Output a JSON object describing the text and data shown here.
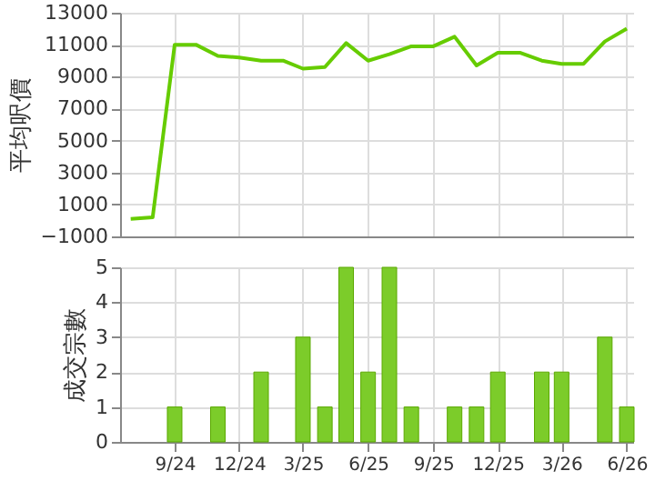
{
  "chart_data": [
    {
      "type": "line",
      "ylabel": "平均呎價",
      "x": [
        "2024-07",
        "2024-08",
        "2024-09",
        "2024-10",
        "2024-11",
        "2024-12",
        "2025-01",
        "2025-02",
        "2025-03",
        "2025-04",
        "2025-05",
        "2025-06",
        "2025-07",
        "2025-08",
        "2025-09",
        "2025-10",
        "2025-11",
        "2025-12",
        "2026-01",
        "2026-02",
        "2026-03",
        "2026-04",
        "2026-05",
        "2026-06"
      ],
      "series": [
        {
          "color": "#66cc00",
          "values": [
            100,
            200,
            11000,
            11000,
            10300,
            10200,
            10000,
            10000,
            9500,
            9600,
            11100,
            10000,
            10400,
            10900,
            10900,
            11500,
            9700,
            10500,
            10500,
            10000,
            9800,
            9800,
            11200,
            12000
          ]
        }
      ],
      "xlim": [
        "2024-06-16",
        "2026-06-10"
      ],
      "xticks": [
        {
          "value": "2024-09",
          "label": null
        },
        {
          "value": "2024-12",
          "label": null
        },
        {
          "value": "2025-03",
          "label": null
        },
        {
          "value": "2025-06",
          "label": null
        },
        {
          "value": "2025-09",
          "label": null
        },
        {
          "value": "2025-12",
          "label": null
        },
        {
          "value": "2026-03",
          "label": null
        },
        {
          "value": "2026-06",
          "label": null
        }
      ],
      "ylim": [
        -1000,
        13000
      ],
      "yticks": [
        -1000,
        1000,
        3000,
        5000,
        7000,
        9000,
        11000,
        13000
      ],
      "grid": true,
      "tick_labels": "y",
      "marker": "none",
      "line_style": "solid"
    },
    {
      "type": "bar",
      "ylabel": "成交宗數",
      "x": [
        "2024-09",
        "2024-10",
        "2024-11",
        "2024-12",
        "2025-01",
        "2025-02",
        "2025-03",
        "2025-04",
        "2025-05",
        "2025-06",
        "2025-07",
        "2025-08",
        "2025-09",
        "2025-10",
        "2025-11",
        "2025-12",
        "2026-01",
        "2026-02",
        "2026-03",
        "2026-04",
        "2026-05",
        "2026-06"
      ],
      "series": [
        {
          "color": "#7ccc2a",
          "values": [
            1,
            null,
            1,
            null,
            2,
            null,
            3,
            1,
            5,
            2,
            5,
            1,
            null,
            1,
            1,
            2,
            null,
            2,
            2,
            null,
            3,
            1
          ]
        }
      ],
      "xlim": [
        "2024-06-16",
        "2026-06-10"
      ],
      "xticks": [
        {
          "value": "2024-09",
          "label": "9/24"
        },
        {
          "value": "2024-12",
          "label": "12/24"
        },
        {
          "value": "2025-03",
          "label": "3/25"
        },
        {
          "value": "2025-06",
          "label": "6/25"
        },
        {
          "value": "2025-09",
          "label": "9/25"
        },
        {
          "value": "2025-12",
          "label": "12/25"
        },
        {
          "value": "2026-03",
          "label": "3/26"
        },
        {
          "value": "2026-06",
          "label": "6/26"
        }
      ],
      "ylim": [
        0,
        5
      ],
      "yticks": [
        0,
        1,
        2,
        3,
        4,
        5
      ],
      "grid": true
    }
  ]
}
